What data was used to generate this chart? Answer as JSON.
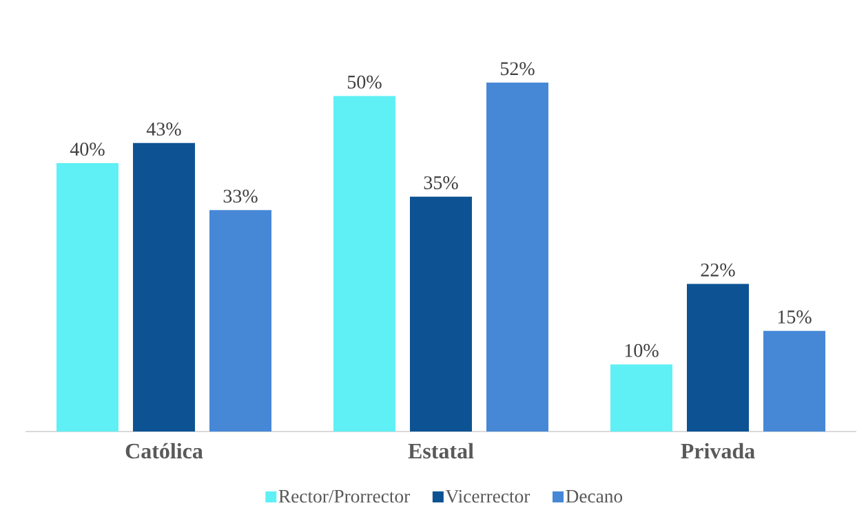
{
  "chart_data": {
    "type": "bar",
    "categories": [
      "Católica",
      "Estatal",
      "Privada"
    ],
    "series": [
      {
        "name": "Rector/Prorrector",
        "color": "#5ff0f5",
        "values": [
          40,
          50,
          10
        ],
        "value_labels": [
          "40%",
          "50%",
          "10%"
        ]
      },
      {
        "name": "Vicerrector",
        "color": "#0d5394",
        "values": [
          43,
          35,
          22
        ],
        "value_labels": [
          "43%",
          "35%",
          "22%"
        ]
      },
      {
        "name": "Decano",
        "color": "#4688d6",
        "values": [
          33,
          52,
          15
        ],
        "value_labels": [
          "33%",
          "52%",
          "15%"
        ]
      }
    ],
    "legend": "bottom"
  }
}
